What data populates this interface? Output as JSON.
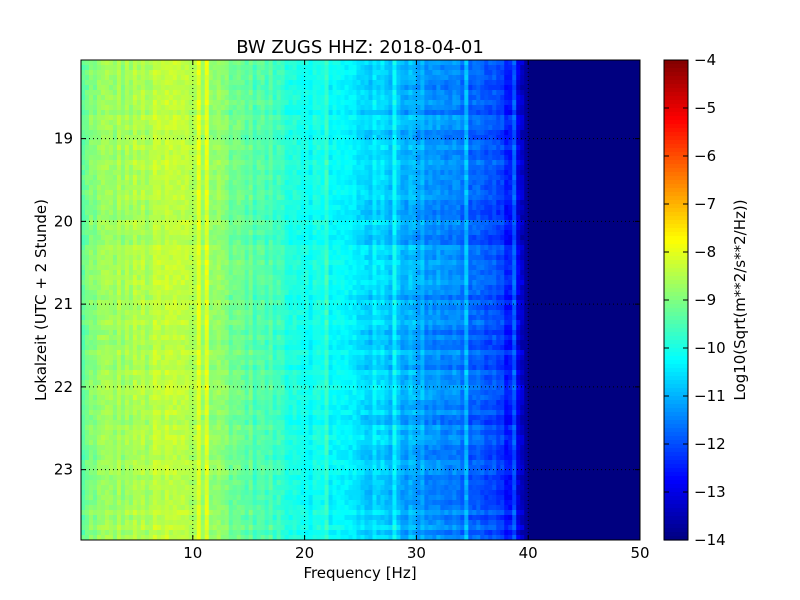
{
  "chart_data": {
    "type": "heatmap",
    "title": "BW ZUGS HHZ: 2018-04-01",
    "xlabel": "Frequency [Hz]",
    "ylabel": "Lokalzeit (UTC + 2 Stunde)",
    "xlim": [
      0,
      50
    ],
    "ylim": [
      18.05,
      23.85
    ],
    "x_ticks": [
      10,
      20,
      30,
      40,
      50
    ],
    "x_tick_labels": [
      "10",
      "20",
      "30",
      "40",
      "50"
    ],
    "y_ticks": [
      19,
      20,
      21,
      22,
      23
    ],
    "y_tick_labels": [
      "19",
      "20",
      "21",
      "22",
      "23"
    ],
    "grid": true,
    "colormap": "jet",
    "colorbar": {
      "label": "Log10(Sqrt(m**2/s**2/Hz))",
      "range": [
        -14,
        -4
      ],
      "ticks": [
        -4,
        -5,
        -6,
        -7,
        -8,
        -9,
        -10,
        -11,
        -12,
        -13,
        -14
      ],
      "tick_labels": [
        "−4",
        "−5",
        "−6",
        "−7",
        "−8",
        "−9",
        "−10",
        "−11",
        "−12",
        "−13",
        "−14"
      ]
    },
    "spectrum_profile": {
      "frequency_hz": [
        0,
        1,
        3,
        5,
        8,
        10,
        12,
        15,
        18,
        20,
        22,
        25,
        28,
        30,
        33,
        35,
        37,
        38.5,
        39.5,
        40,
        50
      ],
      "log_psd": [
        -9.5,
        -8.9,
        -8.7,
        -8.6,
        -8.4,
        -8.5,
        -8.8,
        -9.3,
        -9.7,
        -10.0,
        -10.2,
        -10.5,
        -10.8,
        -11.1,
        -11.4,
        -11.7,
        -12.1,
        -12.5,
        -13.2,
        -14.0,
        -14.0
      ]
    }
  }
}
